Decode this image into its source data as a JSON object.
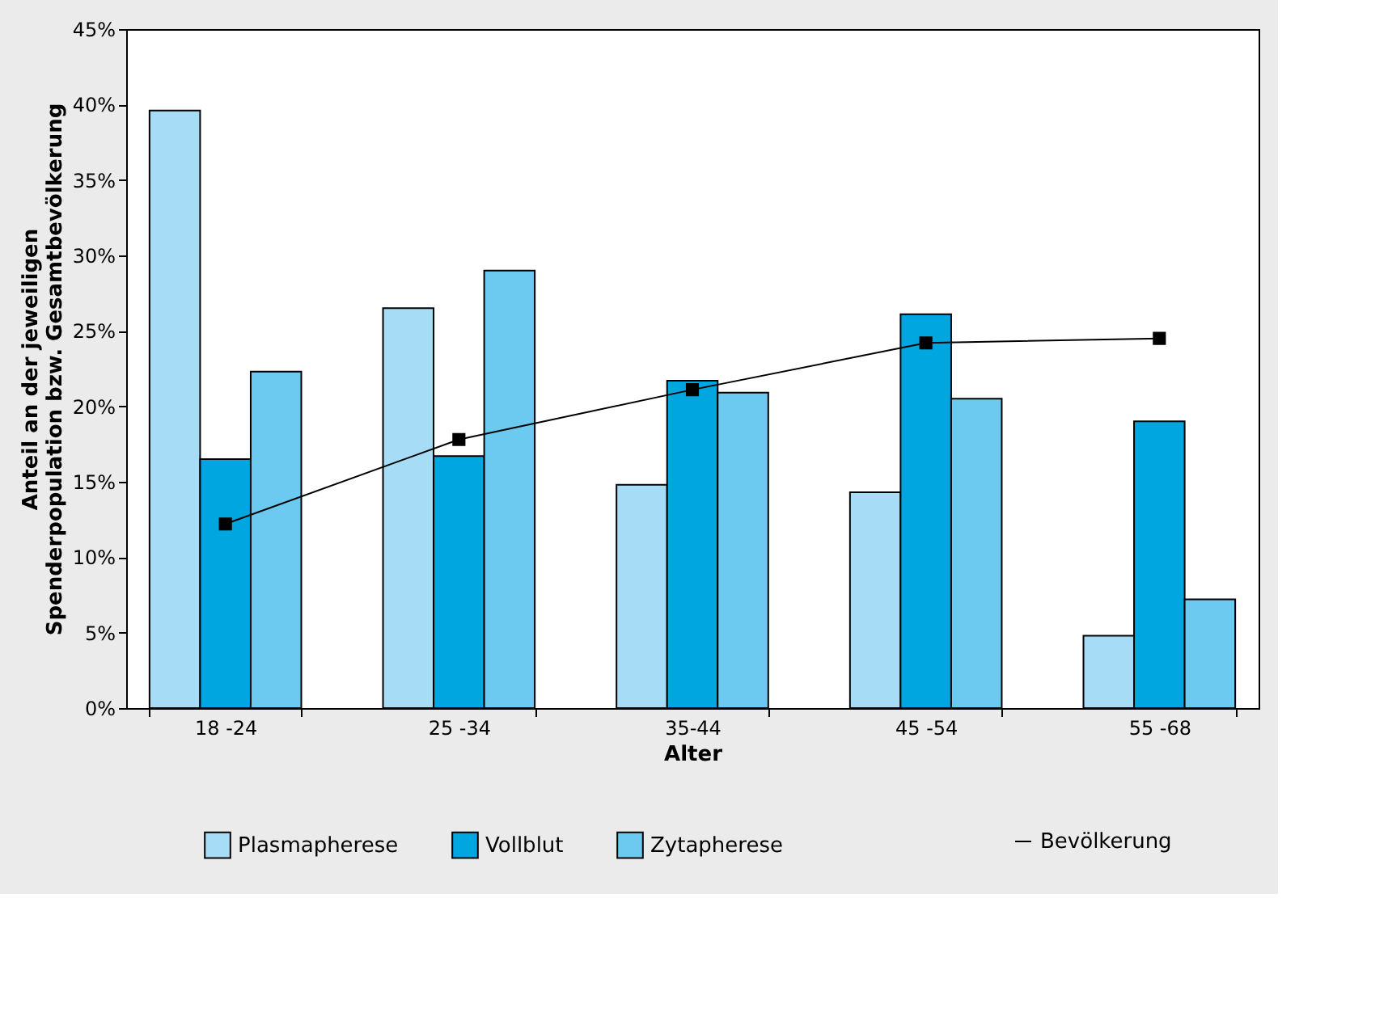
{
  "chart_data": {
    "type": "bar",
    "xlabel": "Alter",
    "ylabel": "Anteil an der jeweiligen Spenderpopulation bzw. Gesamtbevölkerung",
    "categories": [
      "18 -24",
      "25 -34",
      "35-44",
      "45 -54",
      "55 -68"
    ],
    "series": [
      {
        "name": "Plasmapherese",
        "color": "#a6dcf5",
        "values": [
          39.6,
          26.5,
          14.8,
          14.3,
          4.8
        ]
      },
      {
        "name": "Vollblut",
        "color": "#00a6e0",
        "values": [
          16.5,
          16.7,
          21.7,
          26.1,
          19.0
        ]
      },
      {
        "name": "Zytapherese",
        "color": "#6cc9f0",
        "values": [
          22.3,
          29.0,
          20.9,
          20.5,
          7.2
        ]
      },
      {
        "name": "Bevölkerung",
        "type": "line",
        "color": "#000000",
        "marker": "square",
        "values": [
          12.2,
          17.8,
          21.1,
          24.2,
          24.5
        ]
      }
    ],
    "ylim": [
      0,
      45
    ],
    "yticks": [
      {
        "value": 0,
        "label": "0%"
      },
      {
        "value": 5,
        "label": "5%"
      },
      {
        "value": 10,
        "label": "10%"
      },
      {
        "value": 15,
        "label": "15%"
      },
      {
        "value": 20,
        "label": "20%"
      },
      {
        "value": 25,
        "label": "25%"
      },
      {
        "value": 30,
        "label": "30%"
      },
      {
        "value": 35,
        "label": "35%"
      },
      {
        "value": 40,
        "label": "40%"
      },
      {
        "value": 45,
        "label": "45%"
      }
    ],
    "grid": false,
    "legend": "bottom"
  }
}
